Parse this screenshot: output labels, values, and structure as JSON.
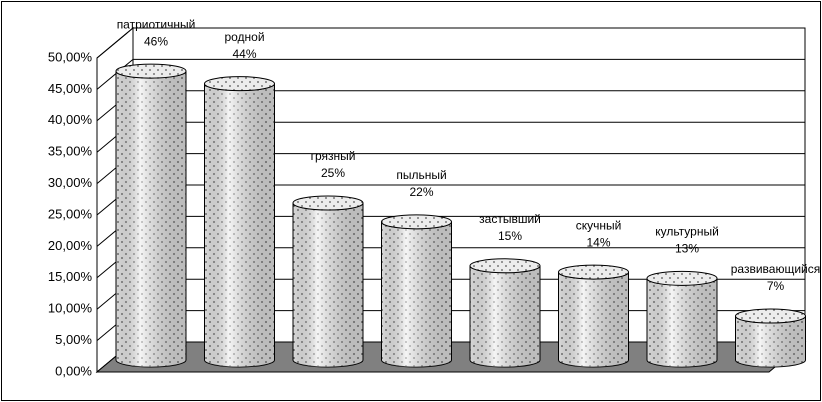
{
  "chart_data": {
    "type": "bar3d",
    "categories": [
      "патриотичный",
      "родной",
      "грязный",
      "пыльный",
      "застывший",
      "скучный",
      "культурный",
      "развивающийся"
    ],
    "values": [
      46,
      44,
      25,
      22,
      15,
      14,
      13,
      7
    ],
    "value_labels": [
      "46%",
      "44%",
      "25%",
      "22%",
      "15%",
      "14%",
      "13%",
      "7%"
    ],
    "ylim": [
      0,
      50
    ],
    "yticks": [
      {
        "value": 0,
        "label": "0,00%"
      },
      {
        "value": 5,
        "label": "5,00%"
      },
      {
        "value": 10,
        "label": "10,00%"
      },
      {
        "value": 15,
        "label": "15,00%"
      },
      {
        "value": 20,
        "label": "20,00%"
      },
      {
        "value": 25,
        "label": "25,00%"
      },
      {
        "value": 30,
        "label": "30,00%"
      },
      {
        "value": 35,
        "label": "35,00%"
      },
      {
        "value": 40,
        "label": "40,00%"
      },
      {
        "value": 45,
        "label": "45,00%"
      },
      {
        "value": 50,
        "label": "50,00%"
      }
    ],
    "grid": true,
    "color": "#e8e8e8",
    "floor_color": "#808080"
  }
}
